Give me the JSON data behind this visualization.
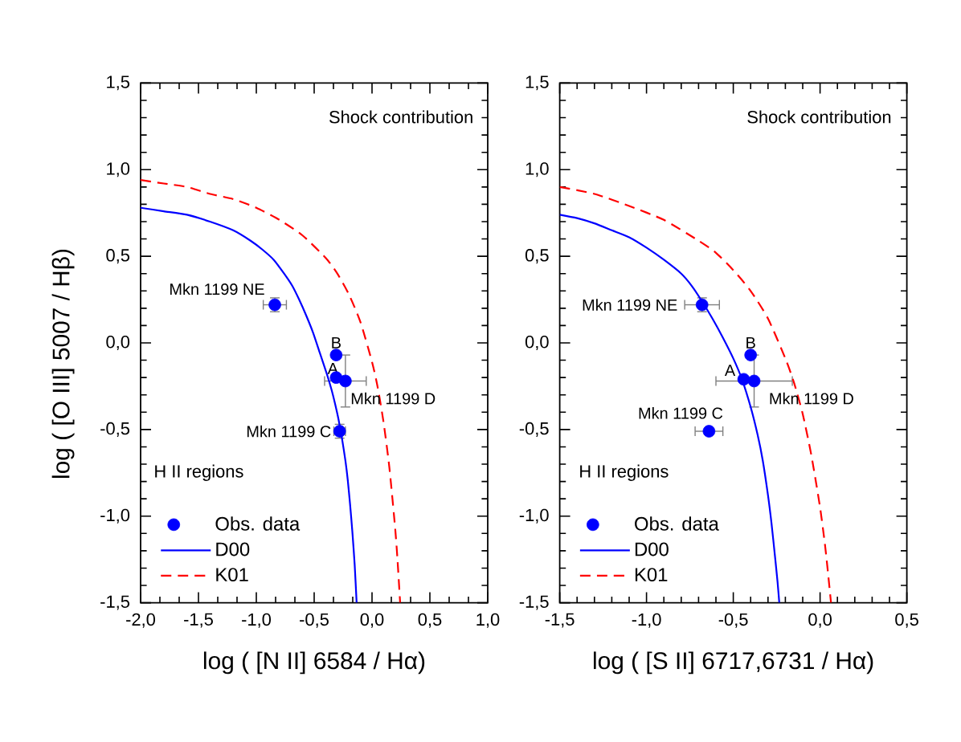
{
  "chart_data": [
    {
      "type": "scatter",
      "xlabel": "log ( [N II] 6584 / Hα)",
      "ylabel": "log ( [O III] 5007 / Hβ)",
      "xlim": [
        -2.0,
        1.0
      ],
      "ylim": [
        -1.5,
        1.5
      ],
      "xticks": [
        {
          "value": -2.0,
          "label": "-2,0"
        },
        {
          "value": -1.5,
          "label": "-1,5"
        },
        {
          "value": -1.0,
          "label": "-1,0"
        },
        {
          "value": -0.5,
          "label": "-0,5"
        },
        {
          "value": 0.0,
          "label": "0,0"
        },
        {
          "value": 0.5,
          "label": "0,5"
        },
        {
          "value": 1.0,
          "label": "1,0"
        }
      ],
      "yticks": [
        {
          "value": -1.5,
          "label": "-1,5"
        },
        {
          "value": -1.0,
          "label": "-1,0"
        },
        {
          "value": -0.5,
          "label": "-0,5"
        },
        {
          "value": 0.0,
          "label": "0,0"
        },
        {
          "value": 0.5,
          "label": "0,5"
        },
        {
          "value": 1.0,
          "label": "1,0"
        },
        {
          "value": 1.5,
          "label": "1,5"
        }
      ],
      "legend": "bottom left",
      "series": [
        {
          "name": "Obs. data",
          "type": "scatter",
          "color": "#0000ff",
          "marker": "circle",
          "x": [
            -0.84,
            -0.31,
            -0.31,
            -0.23,
            -0.28
          ],
          "values": [
            0.22,
            -0.07,
            -0.2,
            -0.22,
            -0.51
          ],
          "xerrors": [
            0.1,
            null,
            null,
            0.18,
            0.05
          ],
          "errors": [
            0.04,
            null,
            null,
            0.15,
            0.04
          ]
        },
        {
          "name": "D00",
          "type": "line",
          "color": "#0000ff",
          "line_style": "solid",
          "x": [
            -2.0,
            -1.8,
            -1.6,
            -1.4,
            -1.2,
            -1.05,
            -0.95,
            -0.85,
            -0.76,
            -0.69,
            -0.63,
            -0.57,
            -0.51,
            -0.45,
            -0.39,
            -0.35,
            -0.32,
            -0.29,
            -0.26,
            -0.23,
            -0.21,
            -0.19,
            -0.17,
            -0.15,
            -0.133
          ],
          "values": [
            0.78,
            0.76,
            0.74,
            0.7,
            0.65,
            0.59,
            0.54,
            0.48,
            0.4,
            0.33,
            0.25,
            0.16,
            0.06,
            -0.06,
            -0.18,
            -0.27,
            -0.35,
            -0.44,
            -0.55,
            -0.68,
            -0.79,
            -0.93,
            -1.09,
            -1.28,
            -1.5
          ]
        },
        {
          "name": "K01",
          "type": "line",
          "color": "#ff0000",
          "line_style": "dashed",
          "x": [
            -2.0,
            -1.8,
            -1.6,
            -1.4,
            -1.2,
            -1.0,
            -0.8,
            -0.6,
            -0.4,
            -0.3,
            -0.2,
            -0.1,
            0.0,
            0.05,
            0.1,
            0.15,
            0.2,
            0.22,
            0.243
          ],
          "values": [
            0.94,
            0.92,
            0.9,
            0.86,
            0.83,
            0.78,
            0.71,
            0.62,
            0.49,
            0.4,
            0.28,
            0.12,
            -0.11,
            -0.26,
            -0.46,
            -0.72,
            -1.07,
            -1.25,
            -1.5
          ]
        }
      ],
      "annotations": [
        "Shock contribution",
        "H II regions",
        {
          "text": "Mkn 1199 NE",
          "x": -0.84,
          "y": 0.22
        },
        {
          "text": "B",
          "x": -0.31,
          "y": -0.07
        },
        {
          "text": "A",
          "x": -0.31,
          "y": -0.2
        },
        {
          "text": "Mkn 1199 D",
          "x": -0.23,
          "y": -0.22
        },
        {
          "text": "Mkn 1199 C",
          "x": -0.28,
          "y": -0.51
        }
      ]
    },
    {
      "type": "scatter",
      "xlabel": "log ( [S II] 6717,6731 / Hα)",
      "xlim": [
        -1.5,
        0.5
      ],
      "ylim": [
        -1.5,
        1.5
      ],
      "xticks": [
        {
          "value": -1.5,
          "label": "-1,5"
        },
        {
          "value": -1.0,
          "label": "-1,0"
        },
        {
          "value": -0.5,
          "label": "-0,5"
        },
        {
          "value": 0.0,
          "label": "0,0"
        },
        {
          "value": 0.5,
          "label": "0,5"
        }
      ],
      "yticks": [
        {
          "value": -1.5,
          "label": "-1,5"
        },
        {
          "value": -1.0,
          "label": "-1,0"
        },
        {
          "value": -0.5,
          "label": "-0,5"
        },
        {
          "value": 0.0,
          "label": "0,0"
        },
        {
          "value": 0.5,
          "label": "0,5"
        },
        {
          "value": 1.0,
          "label": "1,0"
        },
        {
          "value": 1.5,
          "label": "1,5"
        }
      ],
      "legend": "bottom left",
      "series": [
        {
          "name": "Obs. data",
          "type": "scatter",
          "color": "#0000ff",
          "marker": "circle",
          "x": [
            -0.68,
            -0.4,
            -0.44,
            -0.38,
            -0.64
          ],
          "values": [
            0.22,
            -0.07,
            -0.21,
            -0.22,
            -0.51
          ],
          "xerrors": [
            0.1,
            null,
            null,
            0.22,
            0.08
          ],
          "errors": [
            0.04,
            null,
            null,
            0.15,
            null
          ]
        },
        {
          "name": "D00",
          "type": "line",
          "color": "#0000ff",
          "line_style": "solid",
          "x": [
            -1.5,
            -1.4,
            -1.3,
            -1.2,
            -1.1,
            -1.0,
            -0.9,
            -0.8,
            -0.74,
            -0.68,
            -0.62,
            -0.56,
            -0.5,
            -0.45,
            -0.4,
            -0.36,
            -0.33,
            -0.3,
            -0.28,
            -0.26,
            -0.245,
            -0.235
          ],
          "values": [
            0.74,
            0.72,
            0.69,
            0.65,
            0.61,
            0.55,
            0.48,
            0.4,
            0.33,
            0.24,
            0.14,
            0.03,
            -0.09,
            -0.21,
            -0.37,
            -0.53,
            -0.68,
            -0.88,
            -1.04,
            -1.23,
            -1.38,
            -1.5
          ]
        },
        {
          "name": "K01",
          "type": "line",
          "color": "#ff0000",
          "line_style": "dashed",
          "x": [
            -1.5,
            -1.3,
            -1.1,
            -0.9,
            -0.7,
            -0.6,
            -0.5,
            -0.4,
            -0.3,
            -0.2,
            -0.15,
            -0.1,
            -0.05,
            0.0,
            0.03,
            0.05,
            0.063
          ],
          "values": [
            0.9,
            0.86,
            0.79,
            0.71,
            0.59,
            0.52,
            0.42,
            0.3,
            0.14,
            -0.09,
            -0.23,
            -0.41,
            -0.65,
            -0.95,
            -1.18,
            -1.37,
            -1.5
          ]
        }
      ],
      "annotations": [
        "Shock contribution",
        "H II regions",
        {
          "text": "Mkn 1199 NE",
          "x": -0.68,
          "y": 0.22
        },
        {
          "text": "B",
          "x": -0.4,
          "y": -0.07
        },
        {
          "text": "A",
          "x": -0.44,
          "y": -0.21
        },
        {
          "text": "Mkn 1199 D",
          "x": -0.38,
          "y": -0.22
        },
        {
          "text": "Mkn 1199 C",
          "x": -0.64,
          "y": -0.51
        }
      ]
    }
  ]
}
